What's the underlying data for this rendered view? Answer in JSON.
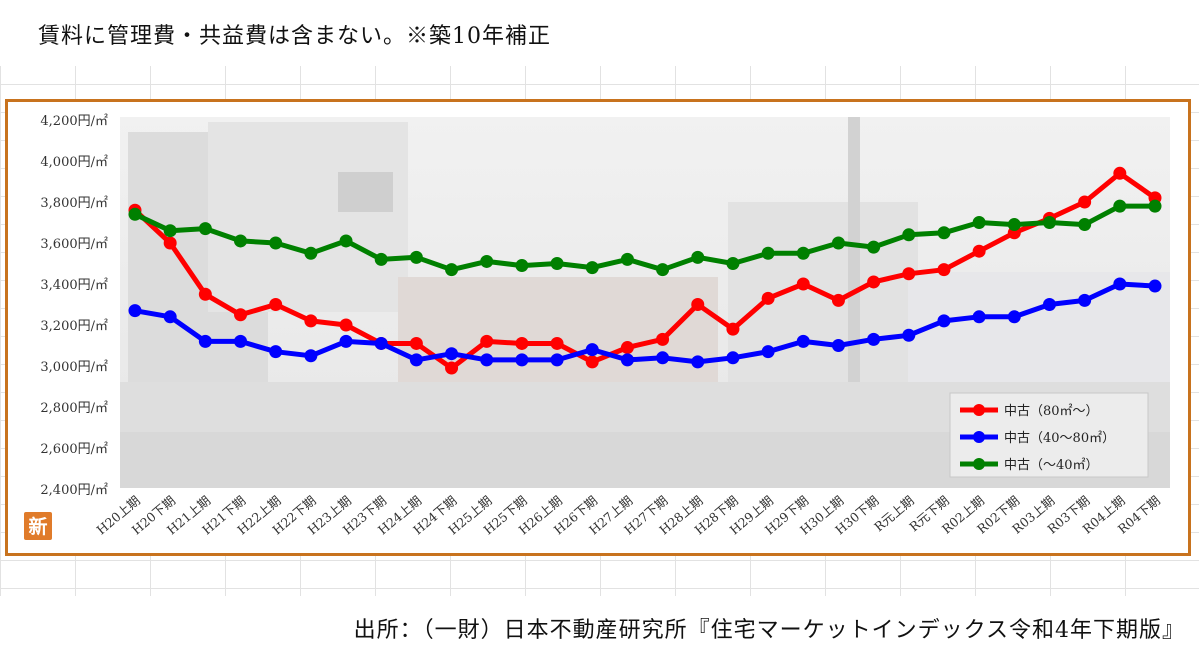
{
  "header": {
    "note": "賃料に管理費・共益費は含まない。※築10年補正"
  },
  "footer": {
    "source": "出所：（一財）日本不動産研究所『住宅マーケットインデックス令和4年下期版』"
  },
  "badge": {
    "label": "新"
  },
  "colors": {
    "frame": "#c8731e",
    "badge": "#e07b2a",
    "series": [
      "#ff0000",
      "#0000ff",
      "#008000"
    ]
  },
  "chart_data": {
    "type": "line",
    "title": "",
    "xlabel": "",
    "ylabel": "",
    "ylim": [
      2400,
      4200
    ],
    "yticks": [
      "4,200円/㎡",
      "4,000円/㎡",
      "3,800円/㎡",
      "3,600円/㎡",
      "3,400円/㎡",
      "3,200円/㎡",
      "3,000円/㎡",
      "2,800円/㎡",
      "2,600円/㎡",
      "2,400円/㎡"
    ],
    "grid": false,
    "legend_position": "bottom-right",
    "categories": [
      "H20上期",
      "H20下期",
      "H21上期",
      "H21下期",
      "H22上期",
      "H22下期",
      "H23上期",
      "H23下期",
      "H24上期",
      "H24下期",
      "H25上期",
      "H25下期",
      "H26上期",
      "H26下期",
      "H27上期",
      "H27下期",
      "H28上期",
      "H28下期",
      "H29上期",
      "H29下期",
      "H30上期",
      "H30下期",
      "R元上期",
      "R元下期",
      "R02上期",
      "R02下期",
      "R03上期",
      "R03下期",
      "R04上期",
      "R04下期"
    ],
    "series": [
      {
        "name": "中古（80㎡～）",
        "values": [
          3760,
          3600,
          3350,
          3250,
          3300,
          3220,
          3200,
          3110,
          3110,
          2990,
          3120,
          3110,
          3110,
          3020,
          3090,
          3130,
          3300,
          3180,
          3330,
          3400,
          3320,
          3410,
          3450,
          3470,
          3560,
          3650,
          3720,
          3800,
          3940,
          3820
        ]
      },
      {
        "name": "中古（40～80㎡）",
        "values": [
          3270,
          3240,
          3120,
          3120,
          3070,
          3050,
          3120,
          3110,
          3030,
          3060,
          3030,
          3030,
          3030,
          3080,
          3030,
          3040,
          3020,
          3040,
          3070,
          3120,
          3100,
          3130,
          3150,
          3220,
          3240,
          3240,
          3300,
          3320,
          3400,
          3390
        ]
      },
      {
        "name": "中古（～40㎡）",
        "values": [
          3740,
          3660,
          3670,
          3610,
          3600,
          3550,
          3610,
          3520,
          3530,
          3470,
          3510,
          3490,
          3500,
          3480,
          3520,
          3470,
          3530,
          3500,
          3550,
          3550,
          3600,
          3580,
          3640,
          3650,
          3700,
          3690,
          3700,
          3690,
          3780,
          3780
        ]
      }
    ]
  }
}
